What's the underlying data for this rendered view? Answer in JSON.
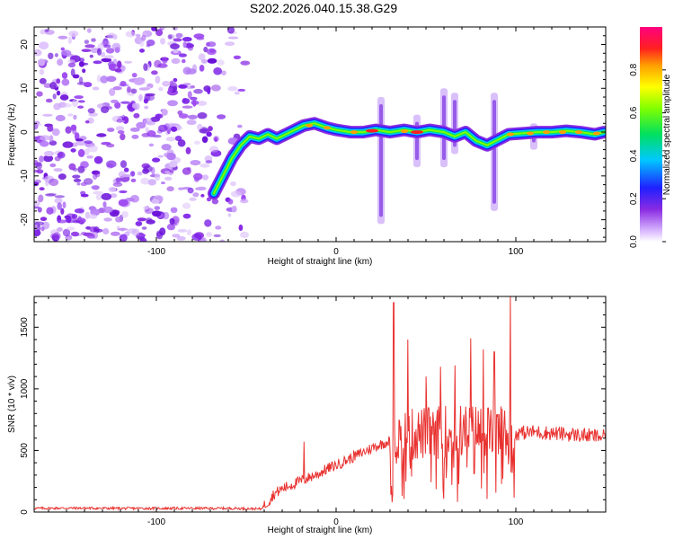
{
  "title": "S202.2026.040.15.38.G29",
  "chart_data": [
    {
      "type": "heatmap",
      "xlabel": "Height of straight line (km)",
      "ylabel": "Frequency (Hz)",
      "xlim": [
        -168,
        150
      ],
      "ylim": [
        -25,
        24
      ],
      "xticks": [
        -100,
        0,
        100
      ],
      "yticks": [
        -20,
        -10,
        0,
        10,
        20
      ],
      "ridge": [
        [
          -68,
          -14
        ],
        [
          -63,
          -10
        ],
        [
          -58,
          -6
        ],
        [
          -53,
          -3
        ],
        [
          -48,
          -1
        ],
        [
          -43,
          -1.5
        ],
        [
          -38,
          -0.5
        ],
        [
          -33,
          -1.5
        ],
        [
          -28,
          -0.5
        ],
        [
          -23,
          0.5
        ],
        [
          -18,
          1.5
        ],
        [
          -12,
          2
        ],
        [
          -5,
          1
        ],
        [
          0,
          0.5
        ],
        [
          8,
          0
        ],
        [
          15,
          0
        ],
        [
          22,
          0.5
        ],
        [
          30,
          0
        ],
        [
          38,
          0.5
        ],
        [
          45,
          0
        ],
        [
          52,
          0.5
        ],
        [
          60,
          0
        ],
        [
          66,
          -1
        ],
        [
          72,
          0
        ],
        [
          78,
          -2
        ],
        [
          84,
          -3
        ],
        [
          96,
          -0.5
        ],
        [
          103,
          -0.3
        ],
        [
          112,
          0
        ],
        [
          120,
          0
        ],
        [
          128,
          0.3
        ],
        [
          136,
          0
        ],
        [
          144,
          -0.5
        ],
        [
          149,
          0
        ]
      ],
      "colorbar": {
        "label": "Normalized spectral amplitude",
        "range": [
          0,
          1
        ],
        "ticks": [
          0.0,
          0.2,
          0.4,
          0.6,
          0.8
        ]
      }
    },
    {
      "type": "line",
      "series": [
        {
          "name": "SNR",
          "color": "#e8312f"
        }
      ],
      "xlabel": "Height of straight line (km)",
      "ylabel": "SNR (10 * v/v)",
      "xlim": [
        -168,
        150
      ],
      "ylim": [
        0,
        1750
      ],
      "xticks": [
        -100,
        0,
        100
      ],
      "yticks": [
        0,
        500,
        1000,
        1500
      ],
      "x": [
        -168,
        -150,
        -120,
        -90,
        -60,
        -50,
        -42,
        -38,
        -35,
        -30,
        -25,
        -20,
        -15,
        -10,
        -5,
        0,
        10,
        20,
        30,
        40,
        50,
        60,
        70,
        80,
        90,
        100,
        110,
        120,
        130,
        140,
        150
      ],
      "values": [
        30,
        32,
        30,
        30,
        30,
        28,
        25,
        80,
        140,
        190,
        220,
        250,
        280,
        310,
        350,
        380,
        450,
        520,
        580,
        620,
        640,
        650,
        660,
        660,
        650,
        640,
        650,
        640,
        630,
        620,
        610
      ],
      "spikes": [
        [
          32,
          1700
        ],
        [
          40,
          1400
        ],
        [
          50,
          1100
        ],
        [
          58,
          1180
        ],
        [
          66,
          1190
        ],
        [
          75,
          1410
        ],
        [
          82,
          1320
        ],
        [
          88,
          1300
        ],
        [
          97,
          1750
        ],
        [
          -18,
          570
        ]
      ]
    }
  ]
}
